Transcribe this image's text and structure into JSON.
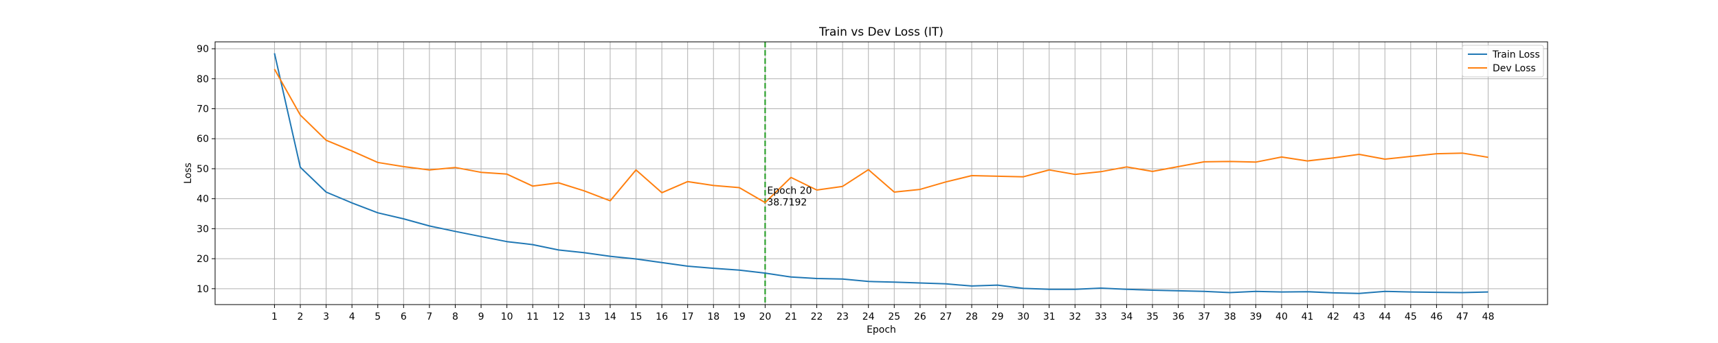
{
  "chart_data": {
    "type": "line",
    "title": "Train vs Dev Loss (IT)",
    "xlabel": "Epoch",
    "ylabel": "Loss",
    "xlim": [
      -1.3,
      50.3
    ],
    "ylim": [
      4.7,
      92.3
    ],
    "x": [
      1,
      2,
      3,
      4,
      5,
      6,
      7,
      8,
      9,
      10,
      11,
      12,
      13,
      14,
      15,
      16,
      17,
      18,
      19,
      20,
      21,
      22,
      23,
      24,
      25,
      26,
      27,
      28,
      29,
      30,
      31,
      32,
      33,
      34,
      35,
      36,
      37,
      38,
      39,
      40,
      41,
      42,
      43,
      44,
      45,
      46,
      47,
      48
    ],
    "xticks": [
      1,
      2,
      3,
      4,
      5,
      6,
      7,
      8,
      9,
      10,
      11,
      12,
      13,
      14,
      15,
      16,
      17,
      18,
      19,
      20,
      21,
      22,
      23,
      24,
      25,
      26,
      27,
      28,
      29,
      30,
      31,
      32,
      33,
      34,
      35,
      36,
      37,
      38,
      39,
      40,
      41,
      42,
      43,
      44,
      45,
      46,
      47,
      48
    ],
    "yticks": [
      10,
      20,
      30,
      40,
      50,
      60,
      70,
      80,
      90
    ],
    "grid": true,
    "legend_position": "top-right",
    "series": [
      {
        "name": "Train Loss",
        "color": "#1f77b4",
        "values": [
          88.5,
          50.5,
          42.2,
          38.6,
          35.3,
          33.3,
          30.9,
          29.1,
          27.4,
          25.7,
          24.7,
          22.9,
          22.0,
          20.8,
          19.9,
          18.7,
          17.5,
          16.8,
          16.2,
          15.2,
          13.9,
          13.4,
          13.2,
          12.4,
          12.2,
          11.9,
          11.6,
          10.9,
          11.2,
          10.1,
          9.8,
          9.8,
          10.2,
          9.8,
          9.5,
          9.3,
          9.1,
          8.7,
          9.1,
          8.9,
          9.0,
          8.6,
          8.4,
          9.1,
          8.9,
          8.8,
          8.7,
          8.9
        ]
      },
      {
        "name": "Dev Loss",
        "color": "#ff7f0e",
        "values": [
          83.2,
          67.9,
          59.5,
          55.9,
          52.1,
          50.7,
          49.6,
          50.4,
          48.8,
          48.2,
          44.2,
          45.3,
          42.6,
          39.3,
          49.6,
          42.0,
          45.7,
          44.4,
          43.7,
          38.7192,
          47.1,
          42.9,
          44.1,
          49.7,
          42.2,
          43.1,
          45.6,
          47.7,
          47.5,
          47.3,
          49.6,
          48.1,
          49.0,
          50.6,
          49.1,
          50.7,
          52.3,
          52.4,
          52.2,
          53.9,
          52.6,
          53.6,
          54.8,
          53.2,
          54.1,
          55.0,
          55.2,
          53.8
        ]
      }
    ],
    "vline": {
      "x": 20,
      "color": "#2ca02c",
      "style": "dashed"
    },
    "annotation": {
      "x": 20,
      "y": 38.7192,
      "lines": [
        "Epoch 20",
        "38.7192"
      ]
    }
  }
}
